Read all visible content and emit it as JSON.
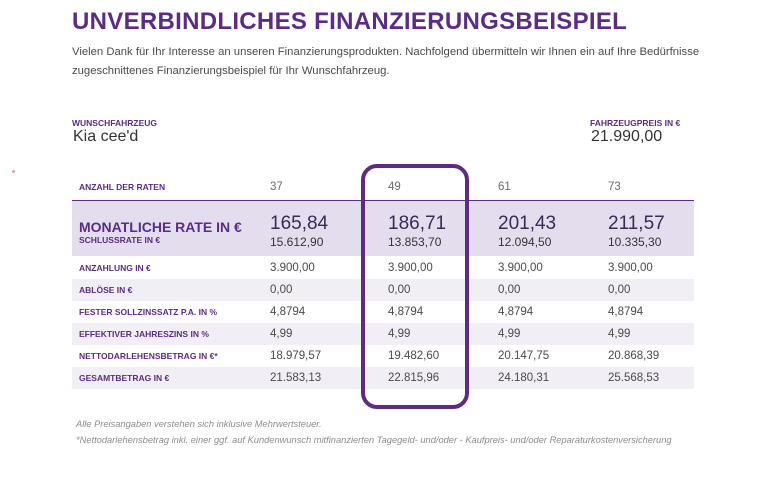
{
  "title": "UNVERBINDLICHES FINANZIERUNGSBEISPIEL",
  "intro": "Vielen Dank für Ihr Interesse an unseren Finanzierungsprodukten. Nachfolgend übermitteln wir Ihnen ein auf Ihre Bedürfnisse zugeschnittenes Finanzierungsbeispiel für Ihr Wunschfahrzeug.",
  "vehicle": {
    "label": "WUNSCHFAHRZEUG",
    "value": "Kia cee'd"
  },
  "price": {
    "label": "FAHRZEUGPREIS IN €",
    "value": "21.990,00"
  },
  "table": {
    "highlight_column": 1,
    "rows": [
      {
        "label": "ANZAHL DER RATEN",
        "values": [
          "37",
          "49",
          "61",
          "73"
        ]
      },
      {
        "label": "MONATLICHE RATE IN €",
        "values": [
          "165,84",
          "186,71",
          "201,43",
          "211,57"
        ]
      },
      {
        "label": "SCHLUSSRATE IN €",
        "values": [
          "15.612,90",
          "13.853,70",
          "12.094,50",
          "10.335,30"
        ]
      },
      {
        "label": "ANZAHLUNG IN €",
        "values": [
          "3.900,00",
          "3.900,00",
          "3.900,00",
          "3.900,00"
        ]
      },
      {
        "label": "ABLÖSE IN €",
        "values": [
          "0,00",
          "0,00",
          "0,00",
          "0,00"
        ]
      },
      {
        "label": "FESTER SOLLZINSSATZ P.A. IN %",
        "values": [
          "4,8794",
          "4,8794",
          "4,8794",
          "4,8794"
        ]
      },
      {
        "label": "EFFEKTIVER JAHRESZINS IN %",
        "values": [
          "4,99",
          "4,99",
          "4,99",
          "4,99"
        ]
      },
      {
        "label": "NETTODARLEHENSBETRAG IN €*",
        "values": [
          "18.979,57",
          "19.482,60",
          "20.147,75",
          "20.868,39"
        ]
      },
      {
        "label": "GESAMTBETRAG IN €",
        "values": [
          "21.583,13",
          "22.815,96",
          "24.180,31",
          "25.568,53"
        ]
      }
    ]
  },
  "footnotes": [
    "Alle Preisangaben verstehen sich inklusive Mehrwertsteuer.",
    "*Nettodarlehensbetrag inkl. einer ggf. auf Kundenwunsch mitfinanzierten Tagegeld- und/oder - Kaufpreis- und/oder Reparaturkostenversicherung"
  ],
  "colors": {
    "accent": "#5b2c86",
    "highlight_bg": "#e4ddee",
    "alt_row_bg": "#f1eef5"
  }
}
